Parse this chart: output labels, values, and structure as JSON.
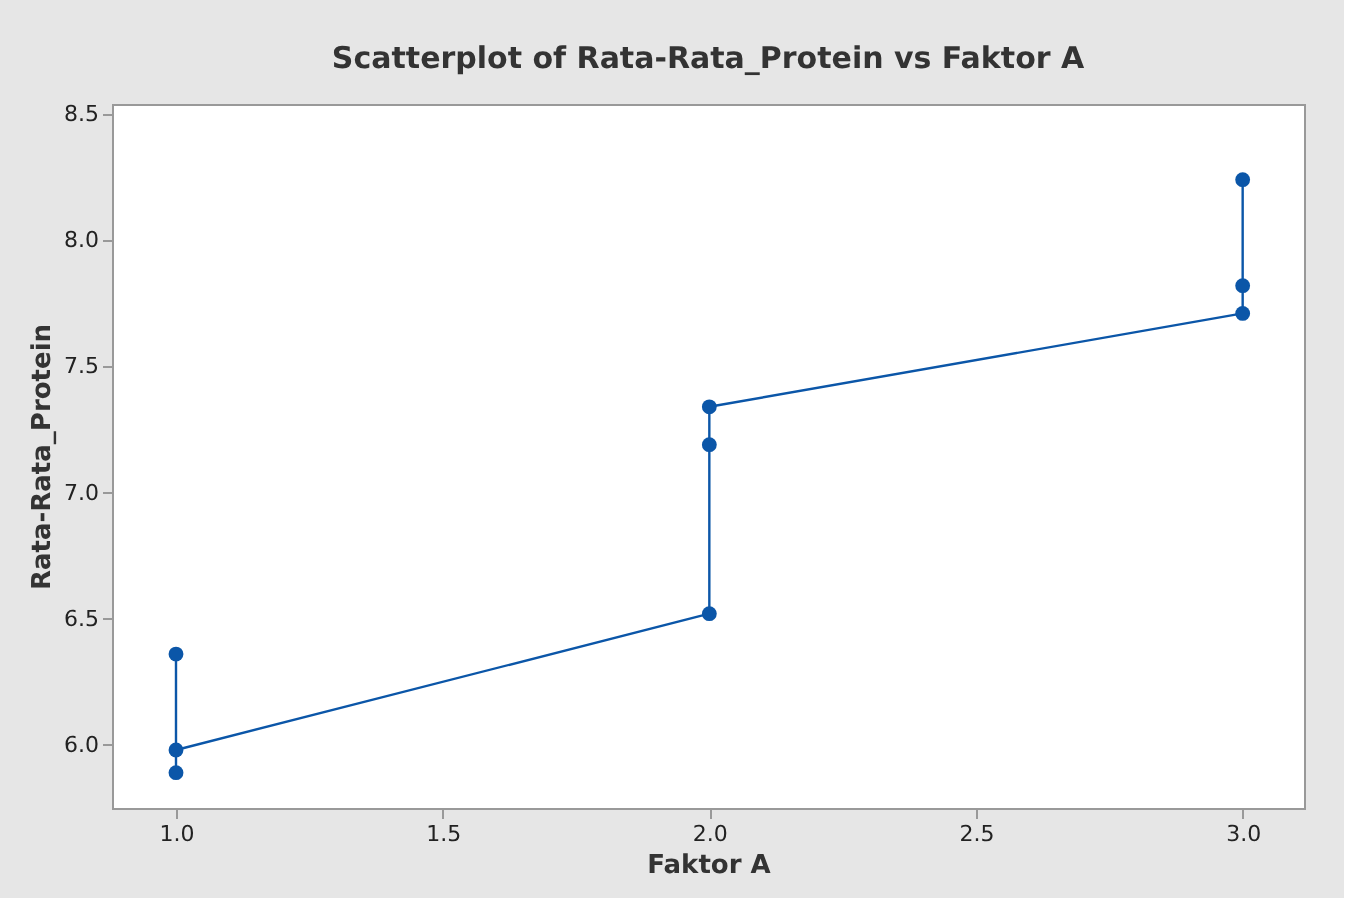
{
  "chart_data": {
    "type": "line",
    "title": "Scatterplot of Rata-Rata_Protein vs Faktor A",
    "xlabel": "Faktor A",
    "ylabel": "Rata-Rata_Protein",
    "series": [
      {
        "color": "#0b56a8",
        "x": [
          1,
          1,
          1,
          2,
          2,
          2,
          3,
          3,
          3
        ],
        "values": [
          6.36,
          5.89,
          5.98,
          6.52,
          7.19,
          7.34,
          7.71,
          7.82,
          8.24
        ]
      }
    ],
    "xlim": [
      0.88,
      3.115
    ],
    "xticks": [
      {
        "value": 1,
        "label": "1.0"
      },
      1.5,
      {
        "value": 2,
        "label": "2.0"
      },
      2.5,
      {
        "value": 3,
        "label": "3.0"
      }
    ],
    "ylim": [
      5.75,
      8.54
    ],
    "yticks": [
      {
        "value": 6,
        "label": "6.0"
      },
      6.5,
      {
        "value": 7,
        "label": "7.0"
      },
      7.5,
      {
        "value": 8,
        "label": "8.0"
      },
      8.5
    ],
    "marker": "circle",
    "line_style": "solid",
    "grid": false
  }
}
